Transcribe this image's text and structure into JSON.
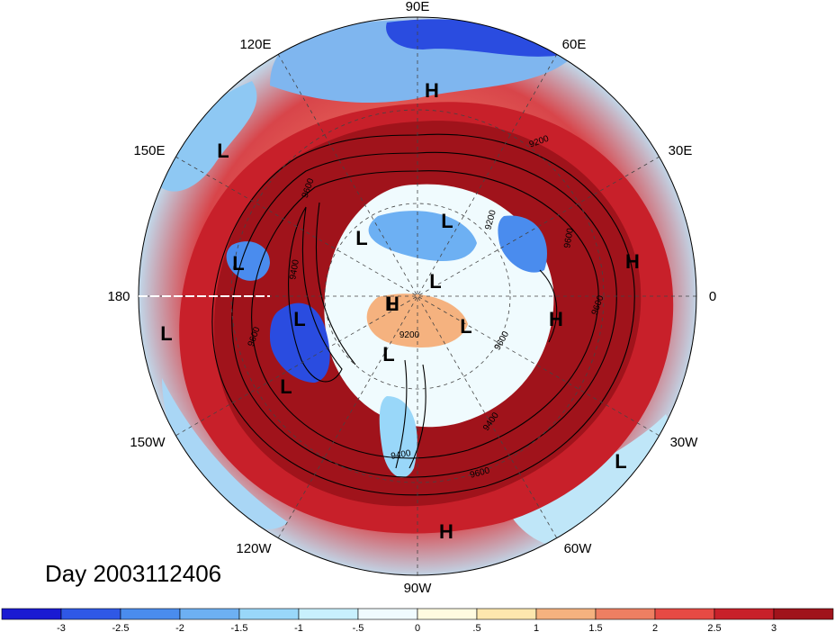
{
  "title": "Day 2003112406",
  "longitude_labels": [
    "90E",
    "60E",
    "30E",
    "0",
    "30W",
    "60W",
    "90W",
    "120W",
    "150W",
    "180",
    "150E",
    "120E"
  ],
  "pressure_systems": [
    {
      "type": "H",
      "label": "H"
    },
    {
      "type": "L",
      "label": "L"
    },
    {
      "type": "L",
      "label": "L"
    },
    {
      "type": "L",
      "label": "L"
    },
    {
      "type": "L",
      "label": "L"
    },
    {
      "type": "H",
      "label": "H"
    },
    {
      "type": "H",
      "label": "H"
    },
    {
      "type": "L",
      "label": "L"
    },
    {
      "type": "L",
      "label": "L"
    },
    {
      "type": "L",
      "label": "L"
    },
    {
      "type": "L",
      "label": "L"
    },
    {
      "type": "H",
      "label": "H"
    },
    {
      "type": "L",
      "label": "L"
    },
    {
      "type": "L",
      "label": "L"
    },
    {
      "type": "H",
      "label": "H"
    },
    {
      "type": "L",
      "label": "L"
    },
    {
      "type": "L",
      "label": "L"
    }
  ],
  "contour_labels": [
    "9200",
    "9600",
    "9600",
    "9400",
    "9200",
    "9600",
    "9200",
    "9600",
    "9400",
    "9600",
    "9400",
    "9600"
  ],
  "colorbar": {
    "colors": [
      "#1a1ad2",
      "#2f58e6",
      "#4a8cee",
      "#6db0f3",
      "#99d7f9",
      "#c8f0fd",
      "#f0fbfe",
      "#fffbe0",
      "#fde7ae",
      "#f5b27f",
      "#ee7f62",
      "#e64a44",
      "#c8202a",
      "#a0131b"
    ],
    "ticks": [
      "-3",
      "-2.5",
      "-2",
      "-1.5",
      "-1",
      "-.5",
      "0",
      ".5",
      "1",
      "1.5",
      "2",
      "2.5",
      "3"
    ]
  },
  "colors": {
    "warm_ring": "#a01420",
    "cold": "#2a4ce0",
    "neutral": "#f2fbfe"
  }
}
